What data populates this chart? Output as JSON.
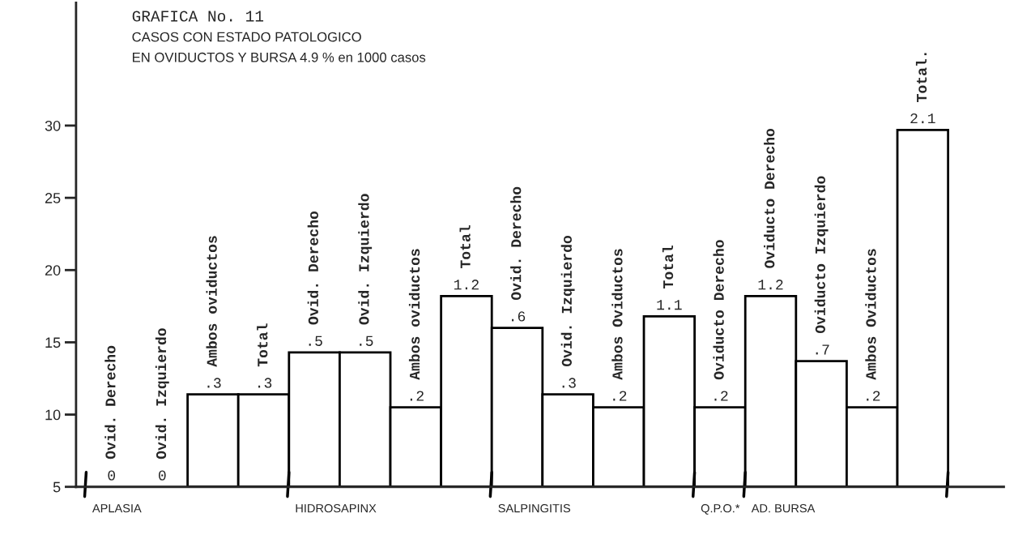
{
  "chart_data": {
    "type": "bar",
    "title": "GRAFICA No. 11",
    "subtitle": "CASOS CON ESTADO PATOLOGICO\nEN OVIDUCTOS Y BURSA 4.9 % en 1000 casos",
    "categories": [
      "Ovid. Derecho",
      "Ovid. Izquierdo",
      "Ambos oviductos",
      "Total",
      "Ovid. Derecho",
      "Ovid. Izquierdo",
      "Ambos oviductos",
      "Total",
      "Ovid. Derecho",
      "Ovid. Izquierdo",
      "Ambos Oviductos",
      "Total",
      "Oviducto Derecho",
      "Oviducto Derecho",
      "Oviducto Izquierdo",
      "Ambos Oviductos",
      "Total."
    ],
    "values": [
      5,
      5,
      11.4,
      11.4,
      14.3,
      14.3,
      10.5,
      18.2,
      16.0,
      11.4,
      10.5,
      16.8,
      10.5,
      18.2,
      13.7,
      10.5,
      29.7
    ],
    "color": "#ffffff",
    "ylim": [
      5,
      38.5
    ],
    "yticks": [
      5,
      10,
      15,
      20,
      25,
      30
    ],
    "grid": false,
    "annotations": [
      "APLASIA",
      "HIDROSAPINX",
      "SALPINGITIS",
      "Q.P.O.*",
      "AD. BURSA",
      "0",
      "0",
      ".3",
      ".3",
      ".5",
      ".5",
      ".2",
      "1.2",
      ".6",
      ".3",
      ".2",
      "1.1",
      ".2",
      "1.2",
      ".7",
      ".2",
      "2.1"
    ]
  }
}
